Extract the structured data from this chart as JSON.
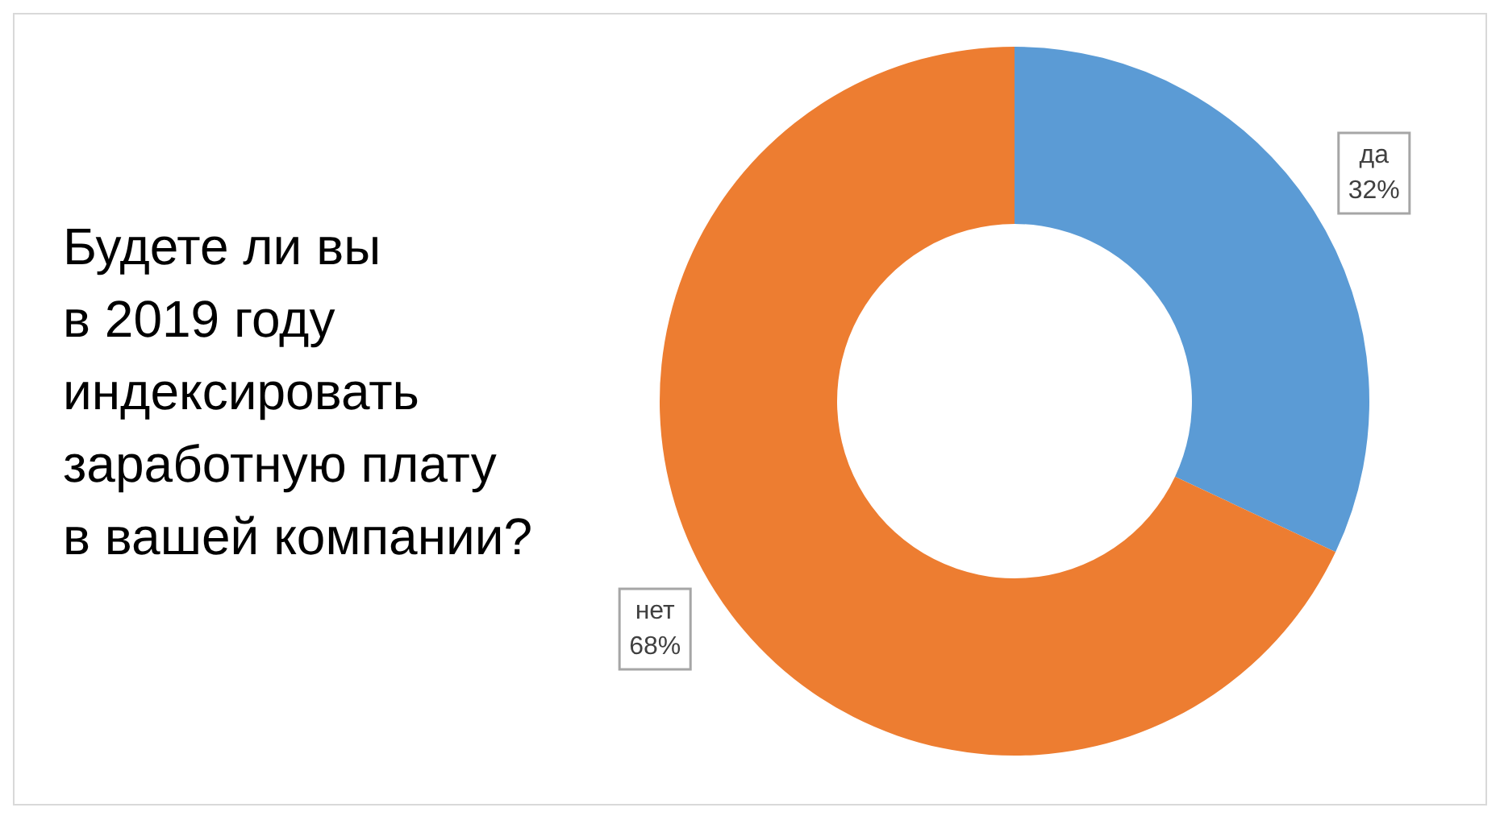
{
  "chart_data": {
    "type": "donut",
    "title": "Будете ли вы\nв 2019 году\nиндексировать\nзаработную плату\nв вашей компании?",
    "categories": [
      "да",
      "нет"
    ],
    "values": [
      32,
      68
    ],
    "colors": [
      "#5b9bd5",
      "#ed7d31"
    ],
    "value_labels": [
      "32%",
      "68%"
    ],
    "legend": false
  }
}
